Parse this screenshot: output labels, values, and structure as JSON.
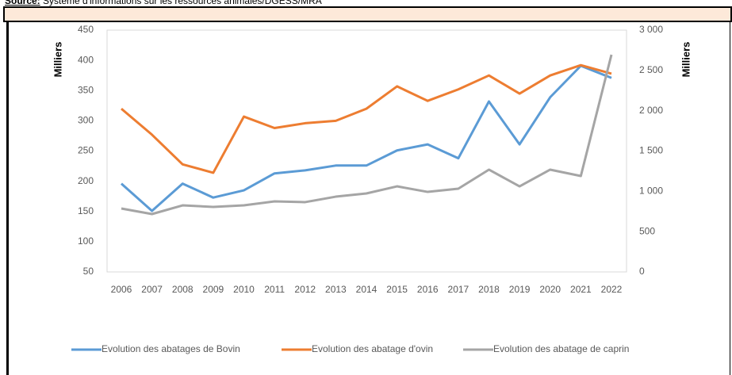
{
  "source": {
    "label": "Source:",
    "text": " Système d'informations sur les ressources animales/DGESS/MRA"
  },
  "chart_data": {
    "type": "line",
    "categories": [
      "2006",
      "2007",
      "2008",
      "2009",
      "2010",
      "2011",
      "2012",
      "2013",
      "2014",
      "2015",
      "2016",
      "2017",
      "2018",
      "2019",
      "2020",
      "2021",
      "2022"
    ],
    "ylabel": "Milliers",
    "y2label": "Milliers",
    "ylim": [
      50,
      450
    ],
    "yticks": [
      50,
      100,
      150,
      200,
      250,
      300,
      350,
      400,
      450
    ],
    "y2lim": [
      0,
      3000
    ],
    "y2ticks": [
      0,
      500,
      {
        "value": 1000,
        "label": "1 000"
      },
      {
        "value": 1500,
        "label": "1 500"
      },
      {
        "value": 2000,
        "label": "2 000"
      },
      {
        "value": 2500,
        "label": "2 500"
      },
      {
        "value": 3000,
        "label": "3 000"
      }
    ],
    "series": [
      {
        "name": "Evolution des abatages de Bovin",
        "color": "#5b9bd5",
        "values": [
          196,
          151,
          196,
          173,
          185,
          213,
          218,
          226,
          226,
          251,
          261,
          238,
          332,
          261,
          339,
          391,
          371
        ]
      },
      {
        "name": "Evolution des abatage d'ovin",
        "color": "#ed7d31",
        "values": [
          320,
          277,
          228,
          214,
          307,
          288,
          296,
          300,
          320,
          357,
          333,
          352,
          375,
          345,
          375,
          392,
          378
        ]
      },
      {
        "name": "Evolution des abatage de caprin",
        "color": "#a5a5a5",
        "axis": "y2",
        "values": [
          787,
          718,
          826,
          807,
          826,
          875,
          866,
          934,
          974,
          1062,
          993,
          1033,
          1269,
          1062,
          1269,
          1190,
          2695
        ]
      }
    ],
    "legend": "bottom"
  }
}
